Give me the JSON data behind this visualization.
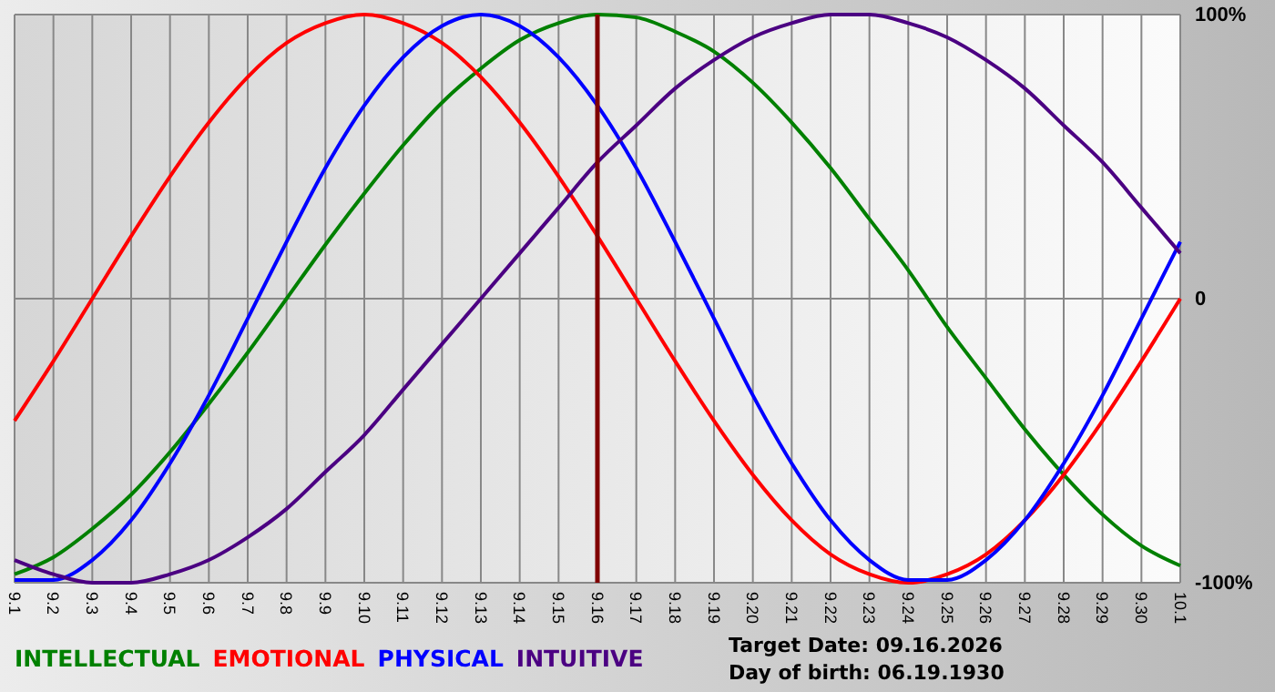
{
  "chart_data": {
    "type": "line",
    "categories": [
      "9.1",
      "9.2",
      "9.3",
      "9.4",
      "9.5",
      "9.6",
      "9.7",
      "9.8",
      "9.9",
      "9.10",
      "9.11",
      "9.12",
      "9.13",
      "9.14",
      "9.15",
      "9.16",
      "9.17",
      "9.18",
      "9.19",
      "9.20",
      "9.21",
      "9.22",
      "9.23",
      "9.24",
      "9.25",
      "9.26",
      "9.27",
      "9.28",
      "9.29",
      "9.30",
      "10.1"
    ],
    "series": [
      {
        "name": "INTELLECTUAL",
        "color": "#008000",
        "values": [
          -97,
          -91,
          -81,
          -69,
          -54,
          -37,
          -19,
          0,
          19,
          37,
          54,
          69,
          81,
          91,
          97,
          100,
          99,
          94,
          87,
          76,
          62,
          46,
          28,
          10,
          -10,
          -28,
          -46,
          -62,
          -76,
          -87,
          -94
        ]
      },
      {
        "name": "EMOTIONAL",
        "color": "#ff0000",
        "values": [
          -43,
          -22,
          0,
          22,
          43,
          62,
          78,
          90,
          97,
          100,
          97,
          90,
          78,
          62,
          43,
          22,
          0,
          -22,
          -43,
          -62,
          -78,
          -90,
          -97,
          -100,
          -97,
          -90,
          -78,
          -62,
          -43,
          -22,
          0
        ]
      },
      {
        "name": "PHYSICAL",
        "color": "#0000ff",
        "values": [
          -99,
          -99,
          -92,
          -78,
          -58,
          -34,
          -7,
          20,
          46,
          68,
          85,
          96,
          100,
          96,
          85,
          68,
          46,
          20,
          -7,
          -34,
          -58,
          -78,
          -92,
          -99,
          -99,
          -92,
          -78,
          -58,
          -34,
          -7,
          20
        ]
      },
      {
        "name": "INTUITIVE",
        "color": "#4b0082",
        "values": [
          -92,
          -97,
          -100,
          -100,
          -97,
          -92,
          -84,
          -74,
          -61,
          -48,
          -32,
          -16,
          0,
          16,
          32,
          48,
          61,
          74,
          84,
          92,
          97,
          100,
          100,
          97,
          92,
          84,
          74,
          61,
          48,
          32,
          16
        ]
      }
    ],
    "ylim": [
      -100,
      100
    ],
    "yticks": [
      {
        "value": 100,
        "label": "100%"
      },
      0,
      {
        "value": -100,
        "label": "-100%"
      }
    ],
    "grid": true,
    "legend": "bottom left",
    "ref_lines": [
      {
        "axis": "x",
        "value": "9.16",
        "color": "#800000"
      }
    ],
    "annotations": [
      "Target Date: 09.16.2026",
      "Day of birth: 06.19.1930"
    ]
  }
}
